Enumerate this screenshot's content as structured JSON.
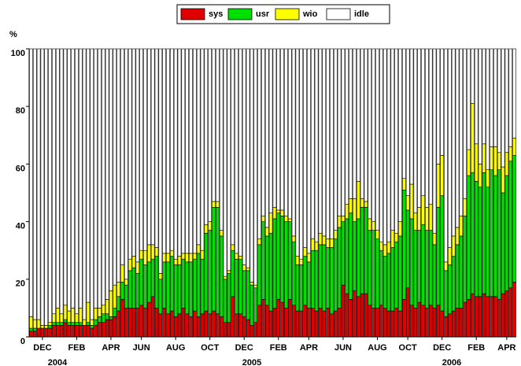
{
  "chart_data": {
    "type": "stacked_bar",
    "y_unit_label": "%",
    "legend": "top",
    "ylim": [
      0,
      100
    ],
    "yticks": [
      0,
      20,
      40,
      60,
      80,
      100
    ],
    "year_labels": [
      "2004",
      "2005",
      "2006"
    ],
    "categories": [
      null,
      null,
      null,
      "DEC",
      null,
      null,
      null,
      null,
      null,
      null,
      null,
      null,
      "FEB",
      null,
      null,
      null,
      null,
      null,
      null,
      null,
      null,
      "APR",
      null,
      null,
      null,
      null,
      null,
      null,
      null,
      "JUN",
      null,
      null,
      null,
      null,
      null,
      null,
      null,
      null,
      "AUG",
      null,
      null,
      null,
      null,
      null,
      null,
      null,
      null,
      "OCT",
      null,
      null,
      null,
      null,
      null,
      null,
      null,
      null,
      "DEC",
      null,
      null,
      null,
      null,
      null,
      null,
      null,
      null,
      "FEB",
      null,
      null,
      null,
      null,
      null,
      null,
      null,
      "APR",
      null,
      null,
      null,
      null,
      null,
      null,
      null,
      null,
      "JUN",
      null,
      null,
      null,
      null,
      null,
      null,
      null,
      null,
      "AUG",
      null,
      null,
      null,
      null,
      null,
      null,
      null,
      "OCT",
      null,
      null,
      null,
      null,
      null,
      null,
      null,
      null,
      "DEC",
      null,
      null,
      null,
      null,
      null,
      null,
      null,
      null,
      "FEB",
      null,
      null,
      null,
      null,
      null,
      null,
      null,
      "APR",
      null,
      null
    ],
    "series": [
      {
        "name": "sys",
        "color": "#e00000",
        "values": [
          2,
          2,
          3,
          3,
          3,
          3,
          4,
          4,
          4,
          5,
          4,
          4,
          4,
          4,
          4,
          4,
          3,
          4,
          5,
          5,
          6,
          6,
          7,
          9,
          13,
          10,
          10,
          10,
          10,
          11,
          10,
          12,
          14,
          10,
          8,
          10,
          8,
          9,
          7,
          8,
          10,
          8,
          7,
          9,
          7,
          8,
          9,
          8,
          9,
          8,
          7,
          5,
          5,
          14,
          8,
          8,
          7,
          6,
          4,
          5,
          11,
          13,
          11,
          9,
          10,
          13,
          12,
          10,
          13,
          11,
          9,
          9,
          11,
          10,
          10,
          9,
          10,
          9,
          10,
          8,
          9,
          10,
          18,
          15,
          13,
          16,
          14,
          15,
          15,
          11,
          10,
          10,
          11,
          10,
          9,
          9,
          10,
          9,
          13,
          17,
          11,
          10,
          12,
          11,
          10,
          11,
          10,
          11,
          9,
          7,
          8,
          9,
          10,
          10,
          12,
          13,
          15,
          14,
          14,
          15,
          14,
          14,
          14,
          13,
          15,
          16,
          17,
          19
        ]
      },
      {
        "name": "usr",
        "color": "#00e000",
        "values": [
          1,
          1,
          0,
          0,
          0,
          1,
          1,
          1,
          1,
          1,
          1,
          1,
          1,
          1,
          0,
          1,
          1,
          2,
          2,
          3,
          2,
          1,
          3,
          5,
          6,
          8,
          13,
          14,
          12,
          16,
          15,
          14,
          13,
          18,
          12,
          16,
          18,
          19,
          18,
          17,
          17,
          18,
          19,
          18,
          22,
          19,
          27,
          29,
          36,
          37,
          28,
          15,
          17,
          16,
          19,
          19,
          16,
          17,
          14,
          12,
          21,
          27,
          24,
          27,
          31,
          30,
          30,
          30,
          27,
          22,
          16,
          16,
          17,
          16,
          20,
          21,
          22,
          23,
          21,
          23,
          25,
          28,
          22,
          26,
          30,
          24,
          27,
          30,
          30,
          26,
          27,
          24,
          19,
          18,
          20,
          22,
          23,
          26,
          38,
          27,
          30,
          27,
          25,
          28,
          27,
          26,
          22,
          34,
          40,
          16,
          17,
          19,
          22,
          25,
          30,
          43,
          42,
          40,
          38,
          42,
          38,
          44,
          42,
          45,
          35,
          40,
          44,
          44
        ]
      },
      {
        "name": "wio",
        "color": "#ffff00",
        "values": [
          4,
          3,
          3,
          1,
          1,
          1,
          3,
          5,
          3,
          5,
          4,
          5,
          3,
          5,
          2,
          7,
          2,
          4,
          3,
          3,
          5,
          9,
          8,
          5,
          6,
          2,
          4,
          4,
          4,
          3,
          5,
          6,
          5,
          3,
          2,
          3,
          3,
          2,
          2,
          3,
          2,
          3,
          3,
          2,
          3,
          3,
          3,
          3,
          2,
          2,
          2,
          1,
          1,
          2,
          2,
          1,
          2,
          1,
          1,
          1,
          2,
          2,
          3,
          7,
          4,
          1,
          2,
          2,
          1,
          2,
          3,
          2,
          3,
          3,
          4,
          3,
          4,
          3,
          3,
          3,
          3,
          4,
          2,
          5,
          5,
          8,
          13,
          3,
          2,
          4,
          3,
          3,
          3,
          4,
          4,
          6,
          3,
          5,
          4,
          5,
          12,
          6,
          8,
          10,
          8,
          9,
          4,
          15,
          14,
          3,
          6,
          7,
          6,
          7,
          6,
          9,
          24,
          13,
          8,
          10,
          6,
          8,
          10,
          6,
          9,
          8,
          5,
          6
        ]
      },
      {
        "name": "idle",
        "color": "#ffffff",
        "values": [
          93,
          94,
          94,
          96,
          96,
          95,
          92,
          90,
          92,
          89,
          91,
          90,
          92,
          90,
          94,
          88,
          94,
          90,
          90,
          89,
          87,
          84,
          82,
          81,
          75,
          80,
          73,
          72,
          74,
          70,
          70,
          68,
          68,
          69,
          78,
          71,
          71,
          70,
          73,
          72,
          71,
          71,
          71,
          71,
          68,
          70,
          61,
          60,
          53,
          53,
          63,
          79,
          77,
          68,
          71,
          72,
          75,
          76,
          81,
          82,
          66,
          58,
          62,
          57,
          55,
          56,
          56,
          58,
          59,
          65,
          72,
          73,
          69,
          71,
          66,
          67,
          64,
          65,
          66,
          66,
          63,
          58,
          58,
          54,
          52,
          52,
          46,
          52,
          53,
          59,
          60,
          63,
          67,
          68,
          67,
          63,
          64,
          60,
          45,
          51,
          47,
          57,
          55,
          51,
          55,
          54,
          64,
          40,
          37,
          74,
          69,
          65,
          62,
          58,
          52,
          35,
          19,
          33,
          40,
          33,
          42,
          34,
          34,
          36,
          41,
          36,
          34,
          31
        ]
      }
    ]
  }
}
